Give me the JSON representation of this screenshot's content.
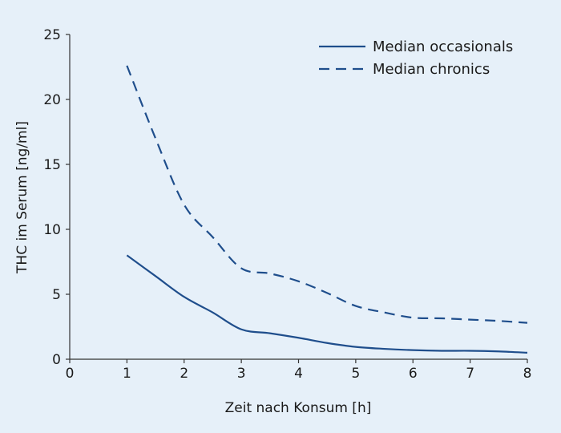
{
  "chart_data": {
    "type": "line",
    "title": "",
    "xlabel": "Zeit  nach Konsum [h]",
    "ylabel": "THC im Serum [ng/ml]",
    "xlim": [
      0,
      8
    ],
    "ylim": [
      0,
      25
    ],
    "xticks": [
      "0",
      "1",
      "2",
      "3",
      "4",
      "5",
      "6",
      "7",
      "8"
    ],
    "yticks": [
      "0",
      "5",
      "10",
      "15",
      "20",
      "25"
    ],
    "grid": false,
    "legend_position": "top-right",
    "series": [
      {
        "name": "Median occasionals",
        "style": "solid",
        "color": "#1f4e8c",
        "x": [
          1,
          1.5,
          2,
          2.5,
          3,
          3.5,
          4,
          4.5,
          5,
          5.5,
          6,
          6.5,
          7,
          7.5,
          8
        ],
        "y": [
          8.0,
          6.4,
          4.8,
          3.6,
          2.3,
          2.0,
          1.65,
          1.25,
          0.95,
          0.8,
          0.7,
          0.65,
          0.65,
          0.6,
          0.5
        ]
      },
      {
        "name": "Median chronics",
        "style": "dashed",
        "color": "#1f4e8c",
        "x": [
          1,
          1.5,
          2,
          2.5,
          3,
          3.5,
          4,
          4.5,
          5,
          5.5,
          6,
          6.5,
          7,
          7.5,
          8
        ],
        "y": [
          22.6,
          17.0,
          11.9,
          9.4,
          7.0,
          6.6,
          6.0,
          5.1,
          4.1,
          3.6,
          3.2,
          3.15,
          3.05,
          2.95,
          2.8
        ]
      }
    ]
  }
}
